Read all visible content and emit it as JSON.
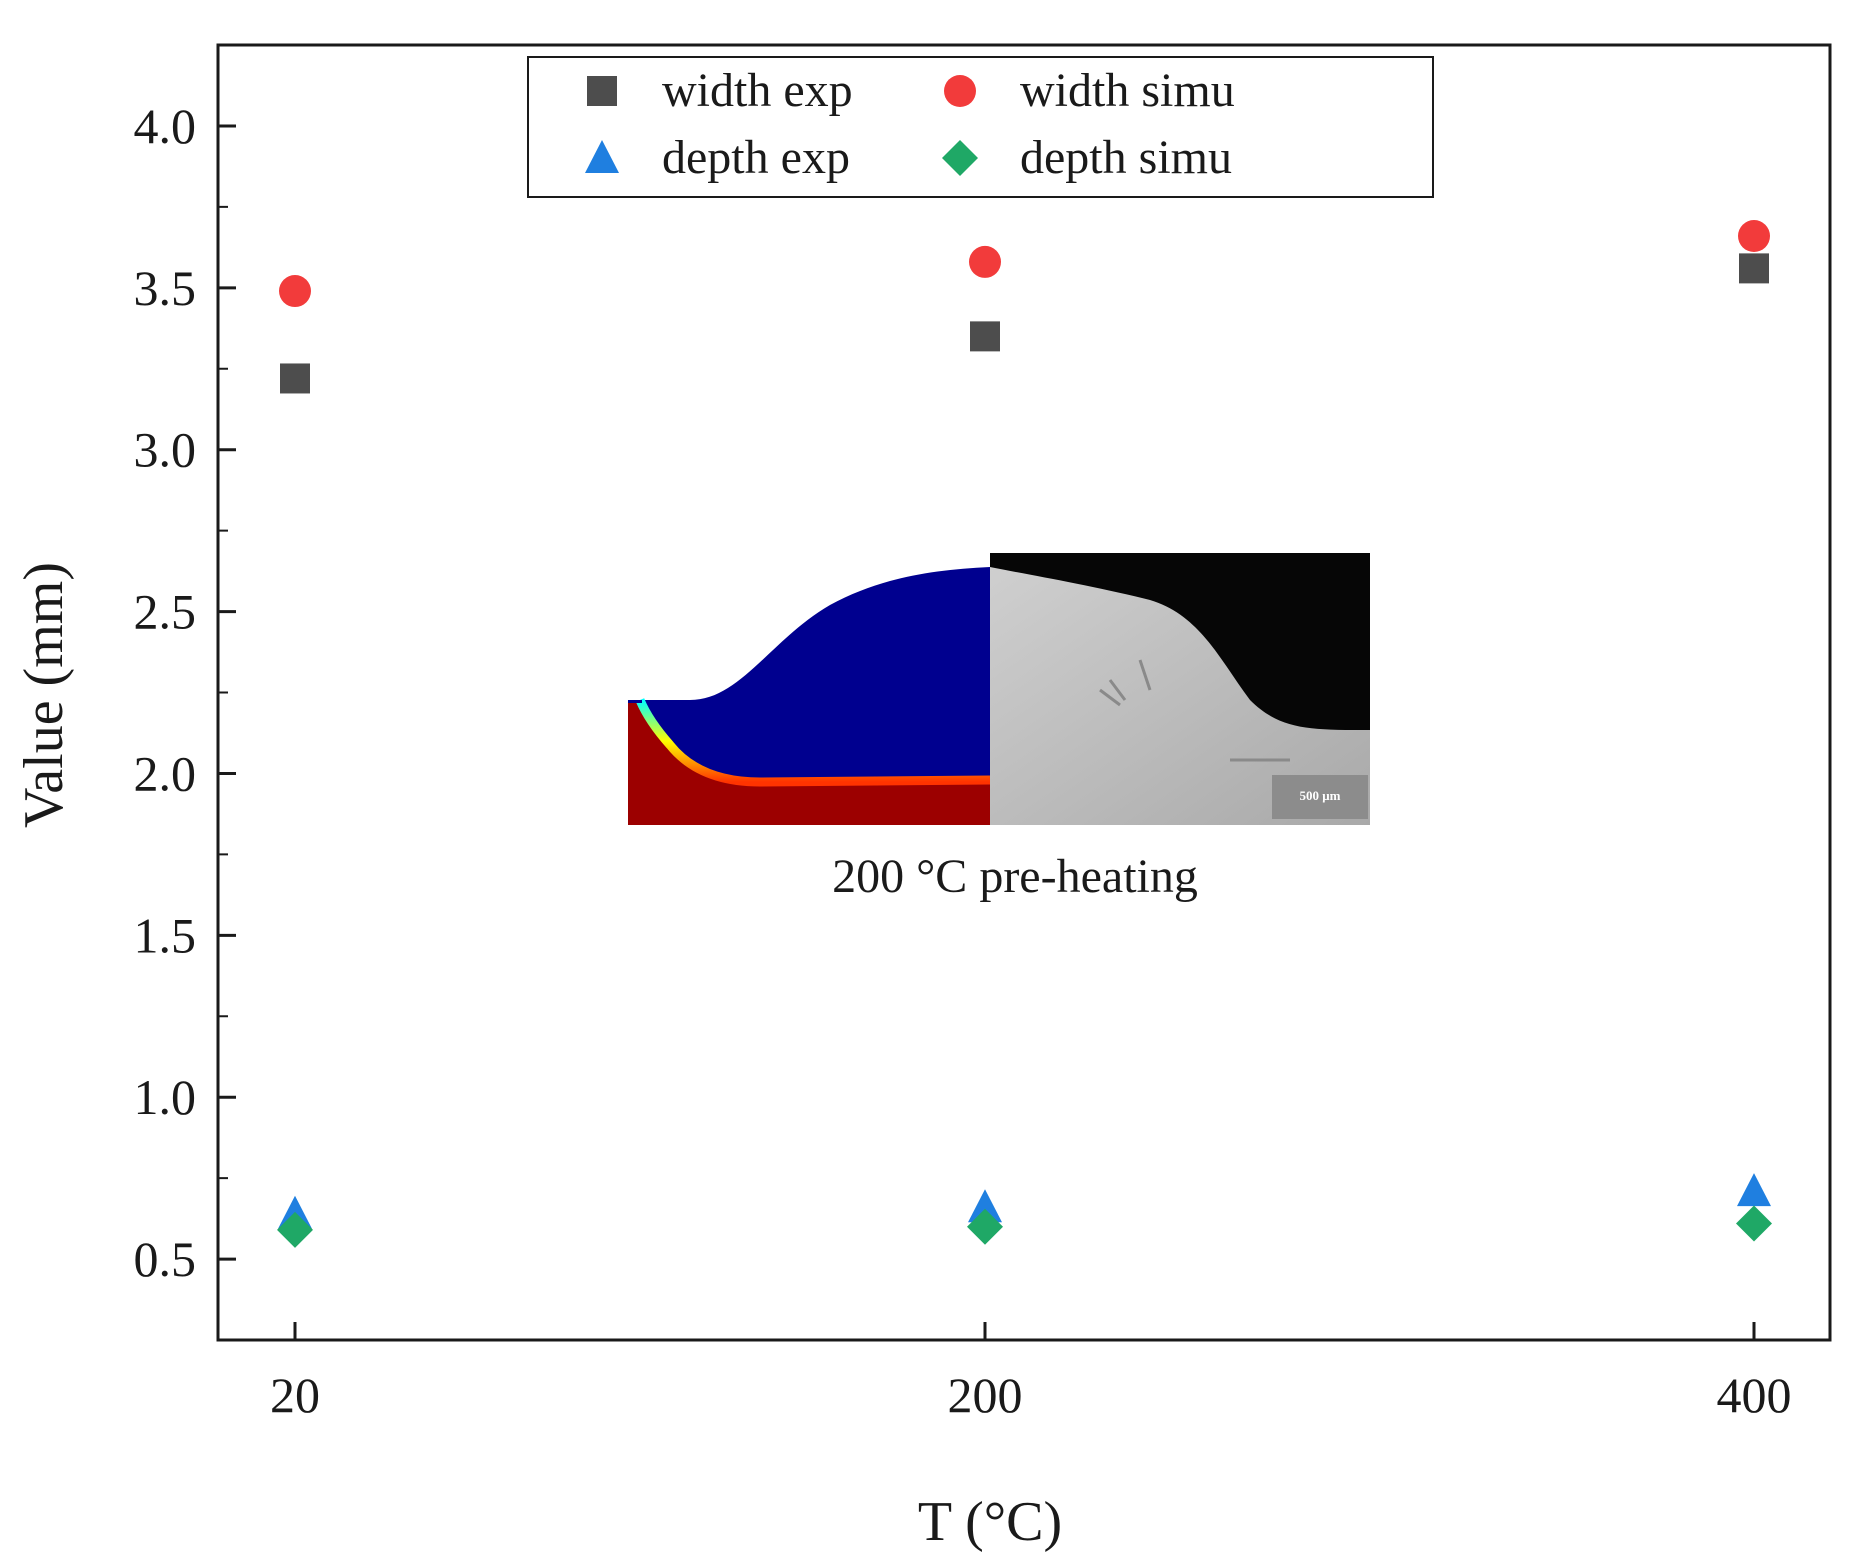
{
  "chart_data": {
    "type": "scatter",
    "xlabel": "T (°C)",
    "ylabel": "Value (mm)",
    "x_categories": [
      "20",
      "200",
      "400"
    ],
    "x_values": [
      20,
      200,
      400
    ],
    "ylim": [
      0.25,
      4.25
    ],
    "yticks": [
      "0.5",
      "1.0",
      "1.5",
      "2.0",
      "2.5",
      "3.0",
      "3.5",
      "4.0"
    ],
    "legend_position": "top-center",
    "grid": false,
    "series": [
      {
        "name": "width exp",
        "marker": "square",
        "color": "#4d4d4d",
        "values": [
          3.22,
          3.35,
          3.56
        ]
      },
      {
        "name": "width simu",
        "marker": "circle",
        "color": "#f23b3b",
        "values": [
          3.49,
          3.58,
          3.66
        ]
      },
      {
        "name": "depth exp",
        "marker": "triangle",
        "color": "#1f7fe0",
        "values": [
          0.64,
          0.66,
          0.71
        ]
      },
      {
        "name": "depth simu",
        "marker": "diamond",
        "color": "#1fa866",
        "values": [
          0.59,
          0.6,
          0.61
        ]
      }
    ],
    "inset": {
      "caption": "200 °C pre-heating",
      "scale_bar": "500 μm"
    }
  }
}
